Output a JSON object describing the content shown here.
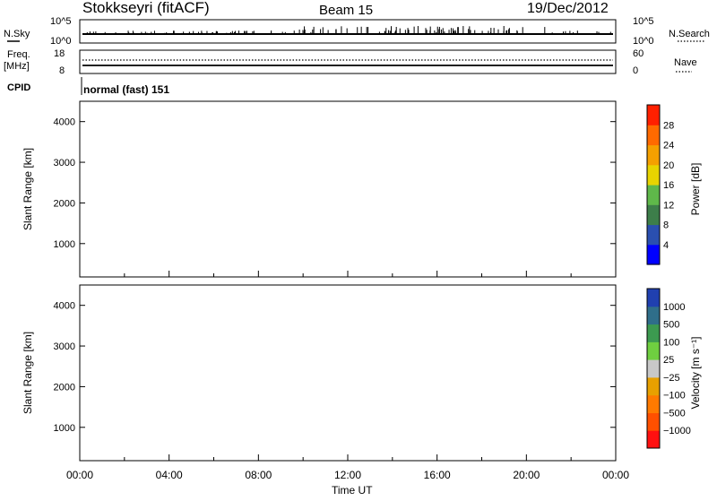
{
  "header": {
    "station": "Stokkseyri (fitACF)",
    "beam": "Beam 15",
    "date": "19/Dec/2012"
  },
  "top_panel": {
    "left_label": "N.Sky",
    "left_ticks": [
      "10^5",
      "10^0"
    ],
    "right_ticks": [
      "10^5",
      "10^0"
    ],
    "right_label": "N.Search"
  },
  "freq_panel": {
    "left_label_1": "Freq.",
    "left_label_2": "[MHz]",
    "left_ticks": [
      "18",
      "8"
    ],
    "right_ticks": [
      "60",
      "0"
    ],
    "right_label": "Nave"
  },
  "cpid": {
    "label": "CPID",
    "value": "normal (fast) 151"
  },
  "colors": {
    "power_scale": [
      "#0000ff",
      "#2a4fb0",
      "#3d7e4a",
      "#5fb84a",
      "#e8d400",
      "#f5a000",
      "#ff6a00",
      "#ff2000"
    ],
    "velocity_scale": [
      "#2040b0",
      "#2f6e8a",
      "#3c9a50",
      "#6fcf40",
      "#c8c8c8",
      "#e8a000",
      "#ff7a00",
      "#ff5000",
      "#ff1010"
    ]
  },
  "chart_data": [
    {
      "type": "heatmap",
      "title": "Power",
      "ylabel": "Slant Range [km]",
      "y_ticks": [
        "1000",
        "2000",
        "3000",
        "4000"
      ],
      "x_ticks": [
        "00:00",
        "04:00",
        "08:00",
        "12:00",
        "16:00",
        "20:00",
        "00:00"
      ],
      "ylim": [
        180,
        4500
      ],
      "colorbar_label": "Power [dB]",
      "colorbar_ticks": [
        "4",
        "8",
        "12",
        "16",
        "20",
        "24",
        "28"
      ],
      "colorbar_range": [
        0,
        32
      ]
    },
    {
      "type": "heatmap",
      "title": "Velocity",
      "ylabel": "Slant Range [km]",
      "xlabel": "Time UT",
      "y_ticks": [
        "1000",
        "2000",
        "3000",
        "4000"
      ],
      "x_ticks": [
        "00:00",
        "04:00",
        "08:00",
        "12:00",
        "16:00",
        "20:00",
        "00:00"
      ],
      "ylim": [
        180,
        4500
      ],
      "colorbar_label": "Velocity [m s⁻¹]",
      "colorbar_ticks": [
        "1000",
        "500",
        "100",
        "25",
        "−25",
        "−100",
        "−500",
        "−1000"
      ]
    }
  ]
}
